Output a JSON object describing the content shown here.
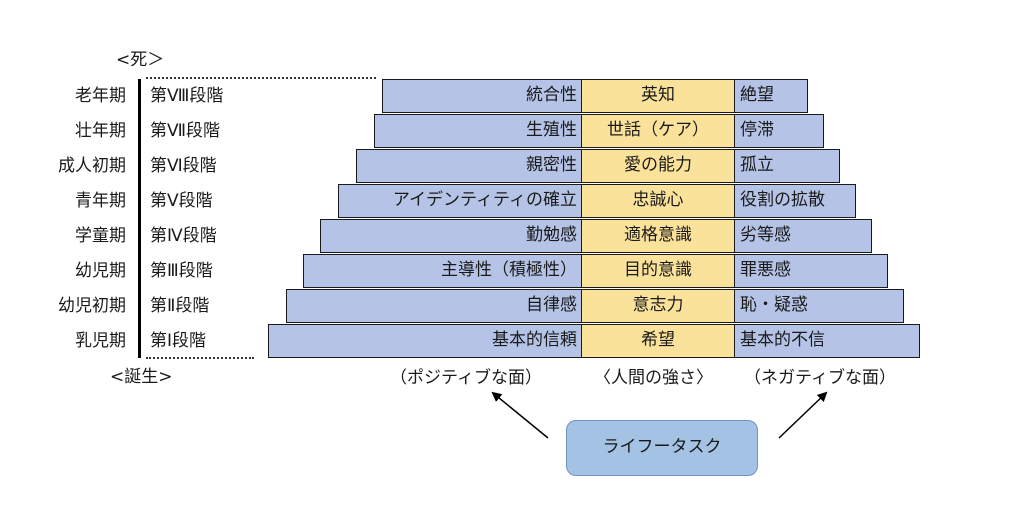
{
  "markers": {
    "top": "<死＞",
    "bottom": "<誕生>"
  },
  "rows": [
    {
      "age": "老年期",
      "stage": "第Ⅷ段階",
      "positive": "統合性",
      "strength": "英知",
      "negative": "絶望"
    },
    {
      "age": "壮年期",
      "stage": "第Ⅶ段階",
      "positive": "生殖性",
      "strength": "世話（ケア）",
      "negative": "停滞"
    },
    {
      "age": "成人初期",
      "stage": "第Ⅵ段階",
      "positive": "親密性",
      "strength": "愛の能力",
      "negative": "孤立"
    },
    {
      "age": "青年期",
      "stage": "第Ⅴ段階",
      "positive": "アイデンティティの確立",
      "strength": "忠誠心",
      "negative": "役割の拡散"
    },
    {
      "age": "学童期",
      "stage": "第Ⅳ段階",
      "positive": "勤勉感",
      "strength": "適格意識",
      "negative": "劣等感"
    },
    {
      "age": "幼児期",
      "stage": "第Ⅲ段階",
      "positive": "主導性（積極性）",
      "strength": "目的意識",
      "negative": "罪悪感"
    },
    {
      "age": "幼児初期",
      "stage": "第Ⅱ段階",
      "positive": "自律感",
      "strength": "意志力",
      "negative": "恥・疑惑"
    },
    {
      "age": "乳児期",
      "stage": "第Ⅰ段階",
      "positive": "基本的信頼",
      "strength": "希望",
      "negative": "基本的不信"
    }
  ],
  "captions": {
    "positive": "（ポジティブな面）",
    "strength": "〈人間の強さ〉",
    "negative": "（ネガティブな面）"
  },
  "task_label": "ライフータスク",
  "colors": {
    "side": "#b4c3e6",
    "center": "#fbe29a",
    "task": "#a4c3e4"
  }
}
